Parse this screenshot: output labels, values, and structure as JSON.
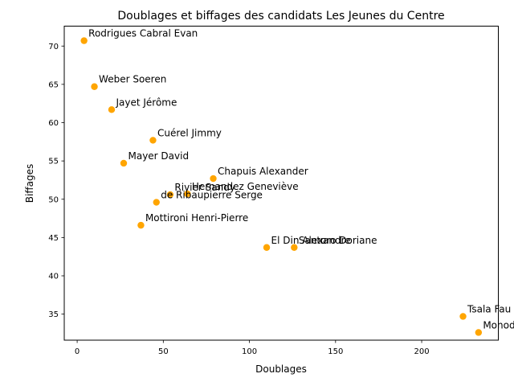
{
  "chart_data": {
    "type": "scatter",
    "title": "Doublages et biffages des candidats Les Jeunes du Centre",
    "xlabel": "Doublages",
    "ylabel": "Biffages",
    "xlim": [
      -7.5,
      244.5
    ],
    "ylim": [
      31.6,
      72.6
    ],
    "xticks": [
      0,
      50,
      100,
      150,
      200
    ],
    "yticks": [
      35,
      40,
      45,
      50,
      55,
      60,
      65,
      70
    ],
    "grid": false,
    "legend": "none",
    "marker_color": "#ffa500",
    "points": [
      {
        "label": "Rodrigues Cabral Evan",
        "x": 4,
        "y": 70.7
      },
      {
        "label": "Weber Soeren",
        "x": 10,
        "y": 64.7
      },
      {
        "label": "Jayet Jérôme",
        "x": 20,
        "y": 61.7
      },
      {
        "label": "Cuérel Jimmy",
        "x": 44,
        "y": 57.7
      },
      {
        "label": "Mayer David",
        "x": 27,
        "y": 54.7
      },
      {
        "label": "Chapuis Alexander",
        "x": 79,
        "y": 52.7
      },
      {
        "label": "Rivier Sandy",
        "x": 54,
        "y": 50.6
      },
      {
        "label": "Hernandez Geneviève",
        "x": 64,
        "y": 50.7
      },
      {
        "label": "de Ribaupierre Serge",
        "x": 46,
        "y": 49.6
      },
      {
        "label": "Mottironi Henri-Pierre",
        "x": 37,
        "y": 46.6
      },
      {
        "label": "El Din Alexandre",
        "x": 110,
        "y": 43.7
      },
      {
        "label": "Santoro Doriane",
        "x": 126,
        "y": 43.7
      },
      {
        "label": "Tsala Fau",
        "x": 224,
        "y": 34.7
      },
      {
        "label": "Monod",
        "x": 233,
        "y": 32.6
      }
    ]
  }
}
